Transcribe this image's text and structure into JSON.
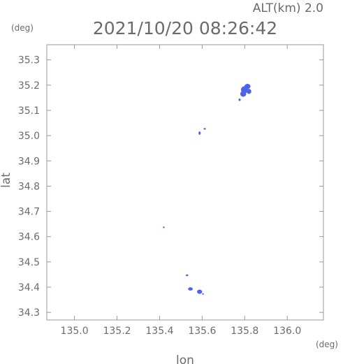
{
  "header": {
    "alt_label": "ALT(km) 2.0",
    "timestamp": "2021/10/20 08:26:42"
  },
  "chart_data": {
    "type": "scatter",
    "title": "2021/10/20 08:26:42",
    "xlabel": "lon",
    "ylabel": "lat",
    "x_unit": "(deg)",
    "y_unit": "(deg)",
    "xlim": [
      134.87,
      136.17
    ],
    "ylim": [
      34.27,
      35.36
    ],
    "x_ticks": [
      135.0,
      135.2,
      135.4,
      135.6,
      135.8,
      136.0
    ],
    "x_tick_labels": [
      "135.0",
      "135.2",
      "135.4",
      "135.6",
      "135.8",
      "136.0"
    ],
    "y_ticks": [
      34.3,
      34.4,
      34.5,
      34.6,
      34.7,
      34.8,
      34.9,
      35.0,
      35.1,
      35.2,
      35.3
    ],
    "y_tick_labels": [
      "34.3",
      "34.4",
      "34.5",
      "34.6",
      "34.7",
      "34.8",
      "34.9",
      "35.0",
      "35.1",
      "35.2",
      "35.3"
    ],
    "grid": false,
    "point_color": "#4f63e8",
    "echoes": [
      {
        "lon": 135.813,
        "lat": 35.195,
        "dlon": 0.028,
        "dlat": 0.02
      },
      {
        "lon": 135.8,
        "lat": 35.182,
        "dlon": 0.035,
        "dlat": 0.028
      },
      {
        "lon": 135.793,
        "lat": 35.165,
        "dlon": 0.028,
        "dlat": 0.022
      },
      {
        "lon": 135.82,
        "lat": 35.175,
        "dlon": 0.022,
        "dlat": 0.02
      },
      {
        "lon": 135.776,
        "lat": 35.142,
        "dlon": 0.01,
        "dlat": 0.01
      },
      {
        "lon": 135.612,
        "lat": 35.027,
        "dlon": 0.01,
        "dlat": 0.007
      },
      {
        "lon": 135.588,
        "lat": 35.01,
        "dlon": 0.01,
        "dlat": 0.013
      },
      {
        "lon": 135.42,
        "lat": 34.637,
        "dlon": 0.006,
        "dlat": 0.006
      },
      {
        "lon": 135.529,
        "lat": 34.447,
        "dlon": 0.012,
        "dlat": 0.007
      },
      {
        "lon": 135.545,
        "lat": 34.393,
        "dlon": 0.022,
        "dlat": 0.013
      },
      {
        "lon": 135.588,
        "lat": 34.382,
        "dlon": 0.024,
        "dlat": 0.017
      },
      {
        "lon": 135.604,
        "lat": 34.373,
        "dlon": 0.004,
        "dlat": 0.005
      }
    ]
  }
}
